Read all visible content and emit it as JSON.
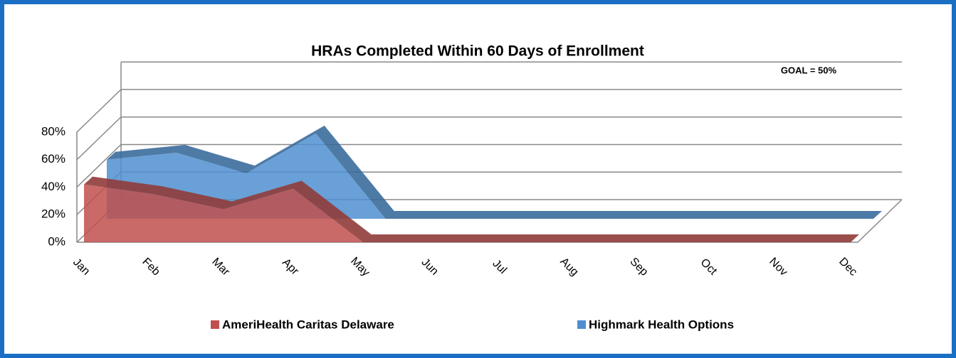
{
  "chart_data": {
    "type": "area3d",
    "title": "HRAs Completed Within 60 Days of Enrollment",
    "annotation": "GOAL = 50%",
    "categories": [
      "Jan",
      "Feb",
      "Mar",
      "Apr",
      "May",
      "Jun",
      "Jul",
      "Aug",
      "Sep",
      "Oct",
      "Nov",
      "Dec"
    ],
    "series": [
      {
        "name": "AmeriHealth Caritas Delaware",
        "color": "#c0504d",
        "values": [
          42,
          35,
          24,
          39,
          0,
          0,
          0,
          0,
          0,
          0,
          0,
          0
        ]
      },
      {
        "name": "Highmark Health Options",
        "color": "#4f8fd0",
        "values": [
          43,
          48,
          33,
          62,
          0,
          0,
          0,
          0,
          0,
          0,
          0,
          0
        ]
      }
    ],
    "ylim": [
      0,
      80
    ],
    "yticks": [
      {
        "value": 0,
        "label": "0%"
      },
      {
        "value": 20,
        "label": "20%"
      },
      {
        "value": 40,
        "label": "40%"
      },
      {
        "value": 60,
        "label": "60%"
      },
      {
        "value": 80,
        "label": "80%"
      }
    ],
    "grid": true
  }
}
